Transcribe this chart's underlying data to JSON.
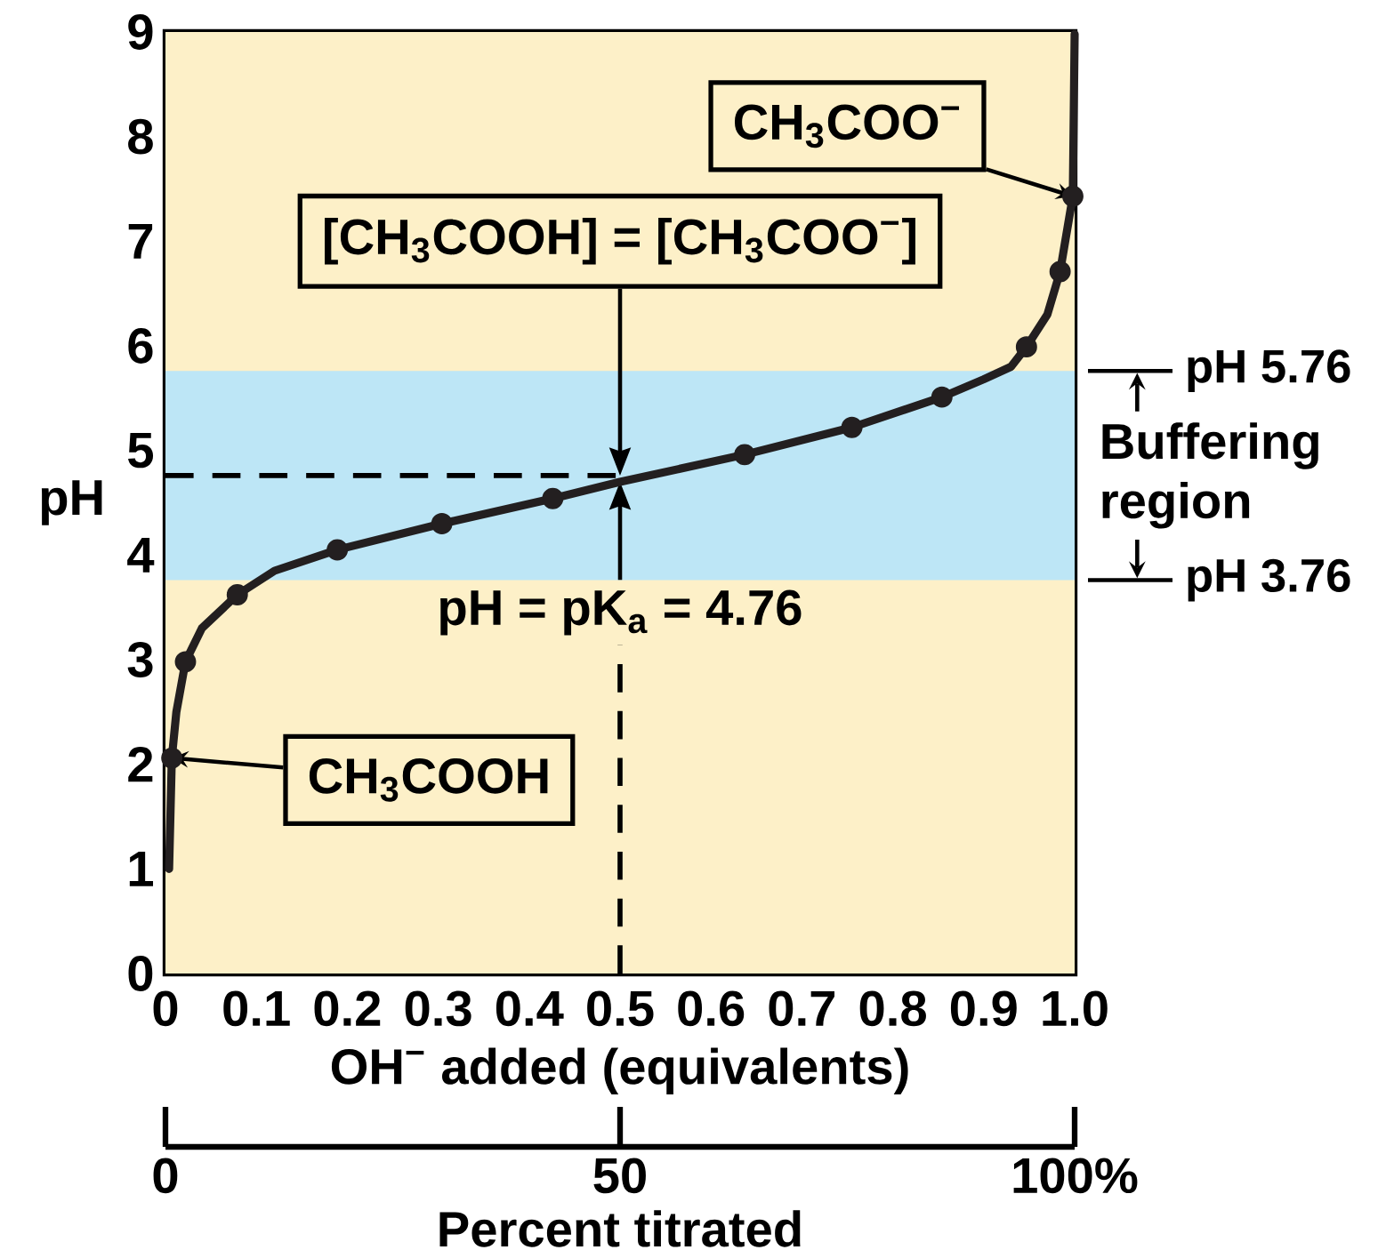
{
  "chart_data": {
    "type": "line",
    "xlabel": "OH$^{−}$ added (equivalents)",
    "ylabel": "pH",
    "x2label": "Percent titrated",
    "xlim": [
      0,
      1
    ],
    "ylim": [
      0,
      9
    ],
    "xticks": [
      0,
      0.1,
      0.2,
      0.3,
      0.4,
      0.5,
      0.6,
      0.7,
      0.8,
      0.9,
      {
        "value": 1,
        "label": "1.0"
      }
    ],
    "yticks": [
      0,
      1,
      2,
      3,
      4,
      5,
      6,
      7,
      8,
      9
    ],
    "x2lim": [
      0,
      100
    ],
    "x2ticks": [
      0,
      50,
      {
        "value": 100,
        "label": "100%"
      }
    ],
    "series": [
      {
        "color": "#231f20",
        "marker": "none",
        "x": [
          0.004,
          0.007,
          0.012,
          0.022,
          0.04,
          0.079,
          0.12,
          0.189,
          0.304,
          0.426,
          0.5,
          0.637,
          0.755,
          0.854,
          0.9,
          0.93,
          0.947,
          0.97,
          0.984,
          0.998,
          1.0
        ],
        "values": [
          1.0,
          2.06,
          2.5,
          2.98,
          3.3,
          3.62,
          3.85,
          4.05,
          4.3,
          4.54,
          4.7,
          4.96,
          5.22,
          5.51,
          5.68,
          5.8,
          5.99,
          6.3,
          6.71,
          7.43,
          8.98
        ]
      },
      {
        "type": "scatter",
        "color": "#231f20",
        "marker": "circle",
        "x": [
          0.007,
          0.022,
          0.079,
          0.189,
          0.304,
          0.426,
          0.637,
          0.755,
          0.854,
          0.947,
          0.984,
          0.998
        ],
        "values": [
          2.06,
          2.98,
          3.62,
          4.05,
          4.3,
          4.54,
          4.96,
          5.22,
          5.51,
          5.99,
          6.71,
          7.43
        ]
      }
    ],
    "bands": [
      {
        "axis": "y",
        "from": 3.76,
        "to": 5.76,
        "label": "Buffering region",
        "color": "#bde6f6"
      }
    ],
    "ref_lines": [
      {
        "axis": "y",
        "value": 4.76,
        "line_style": "dashed"
      },
      {
        "axis": "x",
        "value": 0.5,
        "line_style": "dashed"
      },
      {
        "axis": "y",
        "value": 5.76,
        "label": "pH 5.76"
      },
      {
        "axis": "y",
        "value": 3.76,
        "label": "pH 3.76"
      }
    ],
    "annotations": [
      {
        "text": "CH$_{3}$COOH",
        "x": 0.007,
        "y": 2.06
      },
      {
        "text": "CH$_{3}$COO$^{−}$",
        "x": 0.998,
        "y": 7.43
      },
      "[CH$_{3}$COOH] = [CH$_{3}$COO$^{−}$]",
      {
        "text": "pH = pK$_{a}$ = 4.76",
        "x": 0.5,
        "y": 4.7
      }
    ]
  }
}
